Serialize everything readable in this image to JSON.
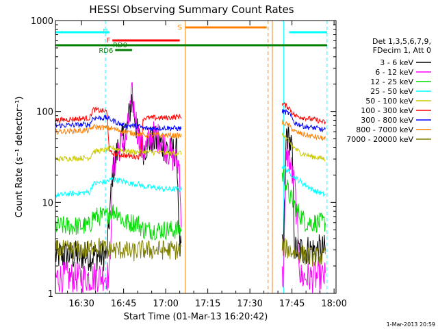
{
  "chart_data": {
    "type": "line",
    "title": "HESSI Observing Summary Count Rates",
    "xlabel": "Start Time (01-Mar-13 16:20:42)",
    "ylabel": "Count Rate (s⁻¹ detector⁻¹)",
    "yscale": "log",
    "ylim": [
      1,
      1000
    ],
    "xlim": [
      "16:20:42",
      "18:00:42"
    ],
    "x_ticks": [
      "16:30",
      "16:45",
      "17:00",
      "17:15",
      "17:30",
      "17:45",
      "18:00"
    ],
    "y_ticks": [
      "1",
      "10",
      "100",
      "1000"
    ],
    "legend_placement": "right",
    "legend_header": [
      "Det 1,3,5,6,7,9,",
      "FDecim 1, Att 0"
    ],
    "footer": "1-Mar-2013 20:59",
    "series": [
      {
        "name": "3 - 6 keV",
        "color": "#000000",
        "points": [
          [
            "16:20:42",
            2.6
          ],
          [
            "16:33",
            2.6
          ],
          [
            "16:39",
            2.6
          ],
          [
            "16:41",
            20
          ],
          [
            "16:43",
            40
          ],
          [
            "16:46",
            60
          ],
          [
            "16:48",
            140
          ],
          [
            "16:50",
            55
          ],
          [
            "16:52",
            38
          ],
          [
            "16:55",
            50
          ],
          [
            "16:58",
            45
          ],
          [
            "17:00",
            40
          ],
          [
            "17:04",
            35
          ],
          [
            "17:05",
            3
          ],
          [
            "17:42",
            3
          ],
          [
            "17:43",
            60
          ],
          [
            "17:45",
            40
          ],
          [
            "17:46",
            3
          ],
          [
            "17:57",
            3
          ]
        ]
      },
      {
        "name": "6 - 12 keV",
        "color": "#ff00ff",
        "points": [
          [
            "16:20:42",
            1.5
          ],
          [
            "16:33",
            1.5
          ],
          [
            "16:40",
            1.6
          ],
          [
            "16:41",
            20
          ],
          [
            "16:43",
            40
          ],
          [
            "16:46",
            50
          ],
          [
            "16:48",
            150
          ],
          [
            "16:50",
            60
          ],
          [
            "16:52",
            35
          ],
          [
            "16:55",
            55
          ],
          [
            "16:58",
            50
          ],
          [
            "17:00",
            40
          ],
          [
            "17:05",
            25
          ],
          [
            "17:06",
            1.5
          ],
          [
            "17:42",
            1.5
          ],
          [
            "17:43",
            40
          ],
          [
            "17:46",
            15
          ],
          [
            "17:48",
            1.5
          ],
          [
            "17:57",
            1.5
          ]
        ]
      },
      {
        "name": "12 - 25 keV",
        "color": "#00dd00",
        "points": [
          [
            "16:20:42",
            5.5
          ],
          [
            "16:33",
            5.5
          ],
          [
            "16:34",
            7
          ],
          [
            "16:39",
            7
          ],
          [
            "16:40",
            8
          ],
          [
            "16:43",
            8
          ],
          [
            "16:45",
            6
          ],
          [
            "16:50",
            6
          ],
          [
            "16:52",
            5
          ],
          [
            "17:05",
            5
          ],
          [
            "17:42",
            20
          ],
          [
            "17:44",
            12
          ],
          [
            "17:47",
            8
          ],
          [
            "17:50",
            6
          ],
          [
            "17:57",
            6
          ]
        ]
      },
      {
        "name": "25 - 50 keV",
        "color": "#00ffff",
        "points": [
          [
            "16:20:42",
            12
          ],
          [
            "16:33",
            13
          ],
          [
            "16:34",
            16
          ],
          [
            "16:39",
            17
          ],
          [
            "16:41",
            18
          ],
          [
            "16:45",
            17
          ],
          [
            "16:48",
            16
          ],
          [
            "16:50",
            16
          ],
          [
            "16:52",
            15
          ],
          [
            "17:00",
            14
          ],
          [
            "17:05",
            14
          ],
          [
            "17:42",
            25
          ],
          [
            "17:45",
            20
          ],
          [
            "17:48",
            17
          ],
          [
            "17:52",
            14
          ],
          [
            "17:57",
            12
          ]
        ]
      },
      {
        "name": "50 - 100 keV",
        "color": "#cccc00",
        "points": [
          [
            "16:20:42",
            30
          ],
          [
            "16:33",
            31
          ],
          [
            "16:34",
            36
          ],
          [
            "16:39",
            38
          ],
          [
            "16:41",
            40
          ],
          [
            "16:45",
            37
          ],
          [
            "16:48",
            36
          ],
          [
            "16:51",
            36
          ],
          [
            "16:52",
            36
          ],
          [
            "17:00",
            35
          ],
          [
            "17:05",
            35
          ],
          [
            "17:42",
            55
          ],
          [
            "17:45",
            42
          ],
          [
            "17:48",
            35
          ],
          [
            "17:52",
            32
          ],
          [
            "17:57",
            30
          ]
        ]
      },
      {
        "name": "100 - 300 keV",
        "color": "#ff0000",
        "points": [
          [
            "16:20:42",
            80
          ],
          [
            "16:33",
            85
          ],
          [
            "16:34",
            105
          ],
          [
            "16:39",
            100
          ],
          [
            "16:40",
            35
          ],
          [
            "16:48",
            32
          ],
          [
            "16:51",
            32
          ],
          [
            "16:52",
            85
          ],
          [
            "17:00",
            85
          ],
          [
            "17:05",
            88
          ],
          [
            "17:42",
            120
          ],
          [
            "17:44",
            110
          ],
          [
            "17:46",
            90
          ],
          [
            "17:50",
            85
          ],
          [
            "17:54",
            80
          ],
          [
            "17:57",
            75
          ]
        ]
      },
      {
        "name": "300 - 800 keV",
        "color": "#0000ff",
        "points": [
          [
            "16:20:42",
            70
          ],
          [
            "16:33",
            72
          ],
          [
            "16:34",
            85
          ],
          [
            "16:39",
            85
          ],
          [
            "16:41",
            80
          ],
          [
            "16:45",
            70
          ],
          [
            "16:48",
            70
          ],
          [
            "16:51",
            68
          ],
          [
            "16:52",
            65
          ],
          [
            "17:00",
            66
          ],
          [
            "17:05",
            65
          ],
          [
            "17:42",
            100
          ],
          [
            "17:44",
            95
          ],
          [
            "17:46",
            75
          ],
          [
            "17:50",
            68
          ],
          [
            "17:54",
            65
          ],
          [
            "17:57",
            62
          ]
        ]
      },
      {
        "name": "800 - 7000 keV",
        "color": "#ff8000",
        "points": [
          [
            "16:20:42",
            60
          ],
          [
            "16:33",
            62
          ],
          [
            "16:34",
            68
          ],
          [
            "16:39",
            66
          ],
          [
            "16:41",
            65
          ],
          [
            "16:45",
            60
          ],
          [
            "16:48",
            58
          ],
          [
            "16:51",
            56
          ],
          [
            "16:52",
            55
          ],
          [
            "17:00",
            55
          ],
          [
            "17:05",
            54
          ],
          [
            "17:42",
            75
          ],
          [
            "17:44",
            70
          ],
          [
            "17:46",
            60
          ],
          [
            "17:50",
            55
          ],
          [
            "17:54",
            52
          ],
          [
            "17:57",
            50
          ]
        ]
      },
      {
        "name": "7000 - 20000 keV",
        "color": "#808000",
        "points": [
          [
            "16:20:42",
            3
          ],
          [
            "16:33",
            3
          ],
          [
            "16:34",
            3.5
          ],
          [
            "16:39",
            3
          ],
          [
            "16:41",
            3
          ],
          [
            "16:45",
            3
          ],
          [
            "16:48",
            2.8
          ],
          [
            "16:51",
            3
          ],
          [
            "16:52",
            3
          ],
          [
            "17:00",
            3
          ],
          [
            "17:05",
            3
          ],
          [
            "17:42",
            3.2
          ],
          [
            "17:44",
            3
          ],
          [
            "17:46",
            2.8
          ],
          [
            "17:50",
            2.6
          ],
          [
            "17:54",
            2.5
          ],
          [
            "17:57",
            2.5
          ]
        ]
      }
    ],
    "state_bars": [
      {
        "label": "N",
        "color": "#00ffff",
        "segments": [
          [
            "16:20:42",
            "16:40"
          ],
          [
            "17:44",
            "17:57:30"
          ]
        ]
      },
      {
        "label": "F",
        "color": "#ff0000",
        "segments": [
          [
            "16:41",
            "17:05"
          ]
        ]
      },
      {
        "label": "RD0",
        "color": "#007f00",
        "segments": [
          [
            "16:20:42",
            "17:57:30"
          ]
        ]
      },
      {
        "label": "RD6",
        "color": "#007f00",
        "segments": [
          [
            "16:42",
            "16:48"
          ]
        ]
      },
      {
        "label": "S",
        "color": "#ff8000",
        "segments": [
          [
            "17:07",
            "17:36"
          ]
        ]
      }
    ],
    "boundaries": [
      {
        "time": "16:20:42",
        "color": "#00ffff",
        "style": "solid"
      },
      {
        "time": "16:38:30",
        "color": "#00ffff",
        "style": "dashed"
      },
      {
        "time": "17:07",
        "color": "#ff8000",
        "style": "solid"
      },
      {
        "time": "17:36:30",
        "color": "#ff8000",
        "style": "dashed"
      },
      {
        "time": "17:38",
        "color": "#ff8000",
        "style": "solid"
      },
      {
        "time": "17:42",
        "color": "#00ffff",
        "style": "solid"
      },
      {
        "time": "17:57:30",
        "color": "#00ffff",
        "style": "dashed"
      }
    ],
    "data_gaps": [
      [
        "17:05:30",
        "17:41:30"
      ]
    ]
  }
}
